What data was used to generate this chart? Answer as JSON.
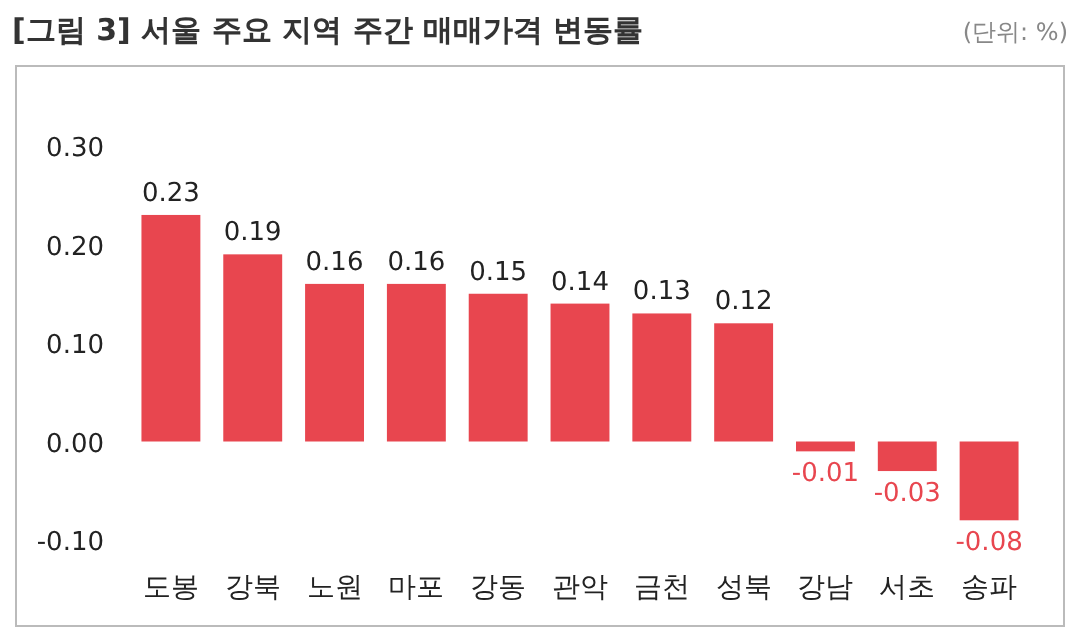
{
  "chart_data": {
    "type": "bar",
    "title": "[그림 3] 서울 주요 지역 주간 매매가격 변동률",
    "annotations": [
      "(단위: %)"
    ],
    "categories": [
      "도봉",
      "강북",
      "노원",
      "마포",
      "강동",
      "관악",
      "금천",
      "성북",
      "강남",
      "서초",
      "송파"
    ],
    "values": [
      0.23,
      0.19,
      0.16,
      0.16,
      0.15,
      0.14,
      0.13,
      0.12,
      -0.01,
      -0.03,
      -0.08
    ],
    "color": "#e8464f",
    "data_labels": true,
    "ylim": [
      -0.1,
      0.3
    ],
    "yticks": [
      {
        "value": -0.1,
        "label": "-0.10"
      },
      {
        "value": 0,
        "label": "0.00"
      },
      {
        "value": 0.1,
        "label": "0.10"
      },
      {
        "value": 0.2,
        "label": "0.20"
      },
      {
        "value": 0.3,
        "label": "0.30"
      }
    ]
  }
}
